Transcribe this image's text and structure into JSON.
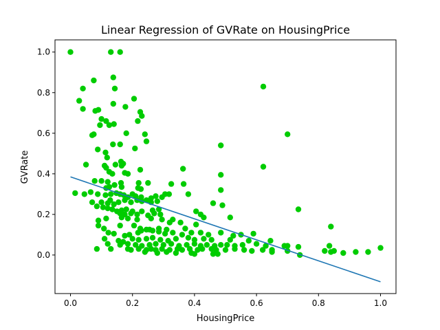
{
  "chart_data": {
    "type": "scatter",
    "title": "Linear Regression of GVRate on HousingPrice",
    "xlabel": "HousingPrice",
    "ylabel": "GVRate",
    "xlim": [
      -0.05,
      1.05
    ],
    "ylim": [
      -0.19,
      1.06
    ],
    "xticks": [
      "0.0",
      "0.2",
      "0.4",
      "0.6",
      "0.8",
      "1.0"
    ],
    "yticks": [
      "0.0",
      "0.2",
      "0.4",
      "0.6",
      "0.8",
      "1.0"
    ],
    "grid": false,
    "legend": "none",
    "point_color": "#00cc00",
    "line_color": "#1f77b4",
    "regression_line": {
      "x": [
        0.0,
        1.0
      ],
      "y": [
        0.385,
        -0.132
      ]
    },
    "points": [
      [
        0.0,
        1.0
      ],
      [
        0.13,
        1.0
      ],
      [
        0.16,
        1.0
      ],
      [
        0.622,
        0.83
      ],
      [
        0.138,
        0.875
      ],
      [
        0.143,
        0.82
      ],
      [
        0.04,
        0.82
      ],
      [
        0.075,
        0.86
      ],
      [
        0.028,
        0.76
      ],
      [
        0.04,
        0.72
      ],
      [
        0.205,
        0.77
      ],
      [
        0.138,
        0.745
      ],
      [
        0.09,
        0.715
      ],
      [
        0.08,
        0.71
      ],
      [
        0.115,
        0.66
      ],
      [
        0.125,
        0.64
      ],
      [
        0.14,
        0.645
      ],
      [
        0.095,
        0.64
      ],
      [
        0.1,
        0.67
      ],
      [
        0.225,
        0.705
      ],
      [
        0.23,
        0.685
      ],
      [
        0.217,
        0.66
      ],
      [
        0.177,
        0.73
      ],
      [
        0.07,
        0.59
      ],
      [
        0.075,
        0.595
      ],
      [
        0.24,
        0.595
      ],
      [
        0.7,
        0.595
      ],
      [
        0.245,
        0.56
      ],
      [
        0.137,
        0.545
      ],
      [
        0.16,
        0.545
      ],
      [
        0.18,
        0.6
      ],
      [
        0.208,
        0.525
      ],
      [
        0.088,
        0.52
      ],
      [
        0.113,
        0.505
      ],
      [
        0.118,
        0.48
      ],
      [
        0.163,
        0.46
      ],
      [
        0.17,
        0.45
      ],
      [
        0.145,
        0.445
      ],
      [
        0.165,
        0.44
      ],
      [
        0.05,
        0.445
      ],
      [
        0.11,
        0.44
      ],
      [
        0.115,
        0.43
      ],
      [
        0.125,
        0.41
      ],
      [
        0.135,
        0.4
      ],
      [
        0.175,
        0.405
      ],
      [
        0.185,
        0.4
      ],
      [
        0.225,
        0.42
      ],
      [
        0.363,
        0.425
      ],
      [
        0.622,
        0.435
      ],
      [
        0.485,
        0.54
      ],
      [
        0.485,
        0.395
      ],
      [
        0.485,
        0.32
      ],
      [
        0.078,
        0.365
      ],
      [
        0.1,
        0.365
      ],
      [
        0.12,
        0.36
      ],
      [
        0.115,
        0.33
      ],
      [
        0.125,
        0.335
      ],
      [
        0.142,
        0.345
      ],
      [
        0.163,
        0.355
      ],
      [
        0.165,
        0.335
      ],
      [
        0.22,
        0.355
      ],
      [
        0.25,
        0.355
      ],
      [
        0.325,
        0.35
      ],
      [
        0.365,
        0.35
      ],
      [
        0.218,
        0.33
      ],
      [
        0.227,
        0.325
      ],
      [
        0.015,
        0.305
      ],
      [
        0.045,
        0.3
      ],
      [
        0.065,
        0.31
      ],
      [
        0.088,
        0.3
      ],
      [
        0.113,
        0.295
      ],
      [
        0.13,
        0.3
      ],
      [
        0.148,
        0.305
      ],
      [
        0.16,
        0.3
      ],
      [
        0.172,
        0.295
      ],
      [
        0.185,
        0.285
      ],
      [
        0.2,
        0.3
      ],
      [
        0.21,
        0.29
      ],
      [
        0.228,
        0.285
      ],
      [
        0.26,
        0.28
      ],
      [
        0.275,
        0.29
      ],
      [
        0.295,
        0.285
      ],
      [
        0.305,
        0.3
      ],
      [
        0.318,
        0.3
      ],
      [
        0.38,
        0.3
      ],
      [
        0.46,
        0.255
      ],
      [
        0.49,
        0.245
      ],
      [
        0.07,
        0.26
      ],
      [
        0.1,
        0.26
      ],
      [
        0.12,
        0.255
      ],
      [
        0.128,
        0.27
      ],
      [
        0.14,
        0.25
      ],
      [
        0.155,
        0.26
      ],
      [
        0.175,
        0.27
      ],
      [
        0.195,
        0.26
      ],
      [
        0.215,
        0.27
      ],
      [
        0.23,
        0.265
      ],
      [
        0.245,
        0.27
      ],
      [
        0.26,
        0.26
      ],
      [
        0.28,
        0.265
      ],
      [
        0.085,
        0.24
      ],
      [
        0.105,
        0.235
      ],
      [
        0.12,
        0.23
      ],
      [
        0.135,
        0.225
      ],
      [
        0.15,
        0.215
      ],
      [
        0.165,
        0.22
      ],
      [
        0.18,
        0.225
      ],
      [
        0.2,
        0.215
      ],
      [
        0.23,
        0.215
      ],
      [
        0.265,
        0.22
      ],
      [
        0.285,
        0.225
      ],
      [
        0.16,
        0.205
      ],
      [
        0.175,
        0.2
      ],
      [
        0.195,
        0.205
      ],
      [
        0.215,
        0.2
      ],
      [
        0.25,
        0.195
      ],
      [
        0.27,
        0.205
      ],
      [
        0.29,
        0.2
      ],
      [
        0.405,
        0.215
      ],
      [
        0.42,
        0.2
      ],
      [
        0.43,
        0.185
      ],
      [
        0.735,
        0.225
      ],
      [
        0.515,
        0.185
      ],
      [
        0.09,
        0.17
      ],
      [
        0.115,
        0.18
      ],
      [
        0.165,
        0.185
      ],
      [
        0.185,
        0.18
      ],
      [
        0.215,
        0.175
      ],
      [
        0.26,
        0.18
      ],
      [
        0.295,
        0.175
      ],
      [
        0.32,
        0.16
      ],
      [
        0.33,
        0.175
      ],
      [
        0.355,
        0.16
      ],
      [
        0.09,
        0.145
      ],
      [
        0.108,
        0.13
      ],
      [
        0.16,
        0.145
      ],
      [
        0.205,
        0.145
      ],
      [
        0.225,
        0.13
      ],
      [
        0.255,
        0.125
      ],
      [
        0.285,
        0.13
      ],
      [
        0.31,
        0.125
      ],
      [
        0.37,
        0.13
      ],
      [
        0.405,
        0.15
      ],
      [
        0.84,
        0.14
      ],
      [
        0.122,
        0.11
      ],
      [
        0.14,
        0.105
      ],
      [
        0.175,
        0.095
      ],
      [
        0.19,
        0.1
      ],
      [
        0.218,
        0.11
      ],
      [
        0.228,
        0.12
      ],
      [
        0.245,
        0.125
      ],
      [
        0.265,
        0.12
      ],
      [
        0.285,
        0.115
      ],
      [
        0.305,
        0.105
      ],
      [
        0.33,
        0.11
      ],
      [
        0.36,
        0.1
      ],
      [
        0.39,
        0.11
      ],
      [
        0.42,
        0.11
      ],
      [
        0.445,
        0.1
      ],
      [
        0.485,
        0.11
      ],
      [
        0.525,
        0.095
      ],
      [
        0.55,
        0.1
      ],
      [
        0.59,
        0.105
      ],
      [
        0.11,
        0.08
      ],
      [
        0.155,
        0.07
      ],
      [
        0.17,
        0.065
      ],
      [
        0.2,
        0.08
      ],
      [
        0.22,
        0.075
      ],
      [
        0.245,
        0.08
      ],
      [
        0.265,
        0.085
      ],
      [
        0.29,
        0.075
      ],
      [
        0.315,
        0.07
      ],
      [
        0.34,
        0.08
      ],
      [
        0.38,
        0.085
      ],
      [
        0.4,
        0.075
      ],
      [
        0.43,
        0.08
      ],
      [
        0.455,
        0.075
      ],
      [
        0.515,
        0.075
      ],
      [
        0.575,
        0.07
      ],
      [
        0.645,
        0.07
      ],
      [
        0.12,
        0.055
      ],
      [
        0.16,
        0.05
      ],
      [
        0.185,
        0.055
      ],
      [
        0.21,
        0.05
      ],
      [
        0.23,
        0.045
      ],
      [
        0.255,
        0.05
      ],
      [
        0.275,
        0.055
      ],
      [
        0.3,
        0.05
      ],
      [
        0.325,
        0.055
      ],
      [
        0.35,
        0.045
      ],
      [
        0.375,
        0.05
      ],
      [
        0.4,
        0.055
      ],
      [
        0.42,
        0.045
      ],
      [
        0.44,
        0.05
      ],
      [
        0.465,
        0.045
      ],
      [
        0.485,
        0.05
      ],
      [
        0.505,
        0.05
      ],
      [
        0.53,
        0.045
      ],
      [
        0.555,
        0.05
      ],
      [
        0.6,
        0.055
      ],
      [
        0.63,
        0.045
      ],
      [
        0.69,
        0.045
      ],
      [
        0.7,
        0.045
      ],
      [
        0.735,
        0.04
      ],
      [
        0.835,
        0.045
      ],
      [
        1.0,
        0.035
      ],
      [
        0.085,
        0.03
      ],
      [
        0.13,
        0.03
      ],
      [
        0.185,
        0.03
      ],
      [
        0.195,
        0.025
      ],
      [
        0.22,
        0.03
      ],
      [
        0.245,
        0.025
      ],
      [
        0.26,
        0.03
      ],
      [
        0.275,
        0.025
      ],
      [
        0.295,
        0.03
      ],
      [
        0.32,
        0.025
      ],
      [
        0.345,
        0.03
      ],
      [
        0.36,
        0.025
      ],
      [
        0.385,
        0.03
      ],
      [
        0.41,
        0.025
      ],
      [
        0.425,
        0.03
      ],
      [
        0.455,
        0.03
      ],
      [
        0.47,
        0.025
      ],
      [
        0.5,
        0.025
      ],
      [
        0.53,
        0.03
      ],
      [
        0.56,
        0.025
      ],
      [
        0.585,
        0.02
      ],
      [
        0.62,
        0.025
      ],
      [
        0.65,
        0.025
      ],
      [
        0.7,
        0.02
      ],
      [
        0.82,
        0.02
      ],
      [
        0.84,
        0.015
      ],
      [
        0.85,
        0.02
      ],
      [
        0.88,
        0.01
      ],
      [
        0.92,
        0.015
      ],
      [
        0.96,
        0.015
      ],
      [
        0.24,
        0.015
      ],
      [
        0.28,
        0.01
      ],
      [
        0.31,
        0.015
      ],
      [
        0.34,
        0.01
      ],
      [
        0.39,
        0.01
      ],
      [
        0.4,
        0.005
      ],
      [
        0.46,
        0.005
      ],
      [
        0.475,
        0.005
      ],
      [
        0.65,
        0.015
      ],
      [
        0.74,
        0.0
      ]
    ]
  }
}
